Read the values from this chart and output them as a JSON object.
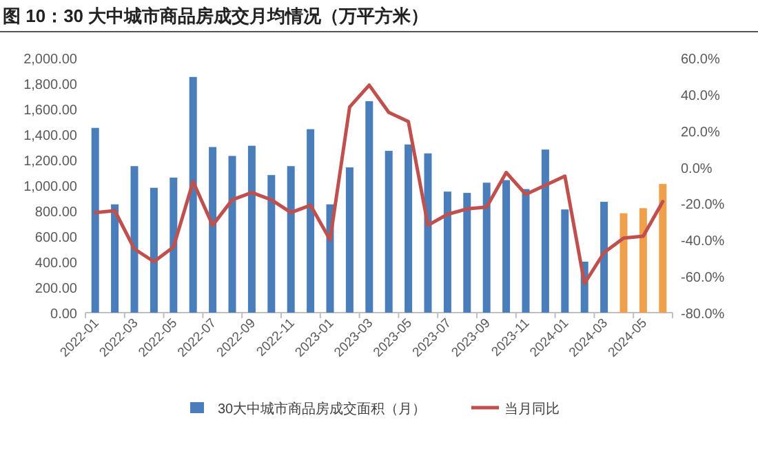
{
  "chart_data": {
    "type": "bar",
    "title": "图 10：30 大中城市商品房成交月均情况（万平方米）",
    "categories": [
      "2022-01",
      null,
      "2022-03",
      null,
      "2022-05",
      null,
      "2022-07",
      null,
      "2022-09",
      null,
      "2022-11",
      null,
      "2023-01",
      null,
      "2023-03",
      null,
      "2023-05",
      null,
      "2023-07",
      null,
      "2023-09",
      null,
      "2023-11",
      null,
      "2024-01",
      null,
      "2024-03",
      null,
      "2024-05",
      null
    ],
    "series": [
      {
        "name": "30大中城市商品房成交面积（月）",
        "color": "#4a7ebb",
        "colors": [
          "#4a7ebb",
          "#4a7ebb",
          "#4a7ebb",
          "#4a7ebb",
          "#4a7ebb",
          "#4a7ebb",
          "#4a7ebb",
          "#4a7ebb",
          "#4a7ebb",
          "#4a7ebb",
          "#4a7ebb",
          "#4a7ebb",
          "#4a7ebb",
          "#4a7ebb",
          "#4a7ebb",
          "#4a7ebb",
          "#4a7ebb",
          "#4a7ebb",
          "#4a7ebb",
          "#4a7ebb",
          "#4a7ebb",
          "#4a7ebb",
          "#4a7ebb",
          "#4a7ebb",
          "#4a7ebb",
          "#4a7ebb",
          "#4a7ebb",
          "#f0a04b",
          "#f0a04b",
          "#f0a04b"
        ],
        "values": [
          1450,
          850,
          1150,
          980,
          1060,
          1850,
          1300,
          1230,
          1310,
          1080,
          1150,
          1440,
          850,
          1140,
          1660,
          1270,
          1320,
          1250,
          950,
          940,
          1020,
          1040,
          970,
          1280,
          810,
          400,
          870,
          780,
          820,
          1010
        ]
      },
      {
        "name": "当月同比",
        "type": "line",
        "axis": "y2",
        "color": "#c0504d",
        "values": [
          -25,
          -24,
          -45,
          -52,
          -44,
          -8,
          -32,
          -18,
          -14,
          -18,
          -25,
          -21,
          -40,
          33,
          45,
          30,
          25,
          -32,
          -26,
          -23,
          -22,
          -3,
          -15,
          -10,
          -5,
          -64,
          -47,
          -39,
          -38,
          -19
        ]
      }
    ],
    "ylim": [
      0,
      2000
    ],
    "yticks": [
      {
        "value": 0,
        "label": "0.00"
      },
      {
        "value": 200,
        "label": "200.00"
      },
      {
        "value": 400,
        "label": "400.00"
      },
      {
        "value": 600,
        "label": "600.00"
      },
      {
        "value": 800,
        "label": "800.00"
      },
      {
        "value": 1000,
        "label": "1,000.00"
      },
      {
        "value": 1200,
        "label": "1,200.00"
      },
      {
        "value": 1400,
        "label": "1,400.00"
      },
      {
        "value": 1600,
        "label": "1,600.00"
      },
      {
        "value": 1800,
        "label": "1,800.00"
      },
      {
        "value": 2000,
        "label": "2,000.00"
      }
    ],
    "y2lim": [
      -80,
      60
    ],
    "y2ticks": [
      {
        "value": -80,
        "label": "-80.0%"
      },
      {
        "value": -60,
        "label": "-60.0%"
      },
      {
        "value": -40,
        "label": "-40.0%"
      },
      {
        "value": -20,
        "label": "-20.0%"
      },
      {
        "value": 0,
        "label": "0.0%"
      },
      {
        "value": 20,
        "label": "20.0%"
      },
      {
        "value": 40,
        "label": "40.0%"
      },
      {
        "value": 60,
        "label": "60.0%"
      }
    ],
    "grid": false,
    "legend": "bottom",
    "marker": "none",
    "line_style": "solid"
  }
}
